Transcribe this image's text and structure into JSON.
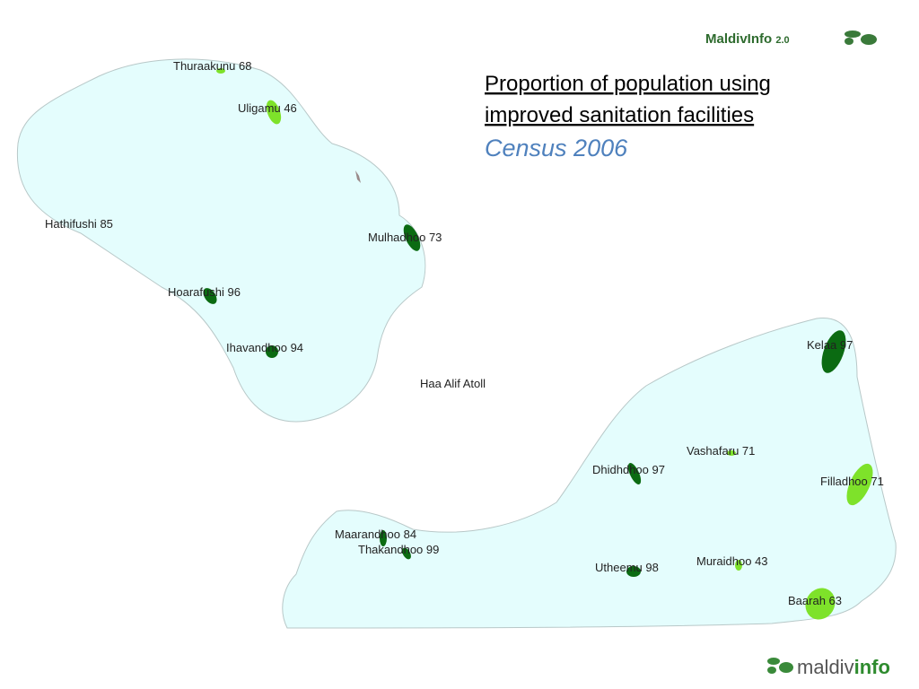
{
  "header": {
    "brand": "MaldivInfo",
    "version": "2.0"
  },
  "title": {
    "line1": "Proportion of population using",
    "line2": "improved sanitation facilities",
    "subtitle": "Census 2006"
  },
  "map": {
    "atoll": "Haa Alif Atoll",
    "islands": [
      {
        "name": "Thuraakunu",
        "value": 68
      },
      {
        "name": "Uligamu",
        "value": 46
      },
      {
        "name": "Hathifushi",
        "value": 85
      },
      {
        "name": "Mulhadhoo",
        "value": 73
      },
      {
        "name": "Hoarafushi",
        "value": 96
      },
      {
        "name": "Ihavandhoo",
        "value": 94
      },
      {
        "name": "Kelaa",
        "value": 97
      },
      {
        "name": "Vashafaru",
        "value": 71
      },
      {
        "name": "Dhidhdhoo",
        "value": 97
      },
      {
        "name": "Filladhoo",
        "value": 71
      },
      {
        "name": "Maarandhoo",
        "value": 84
      },
      {
        "name": "Thakandhoo",
        "value": 99
      },
      {
        "name": "Utheemu",
        "value": 98
      },
      {
        "name": "Muraidhoo",
        "value": 43
      },
      {
        "name": "Baarah",
        "value": 63
      }
    ]
  },
  "footer": {
    "brand_a": "maldiv",
    "brand_b": "info"
  }
}
